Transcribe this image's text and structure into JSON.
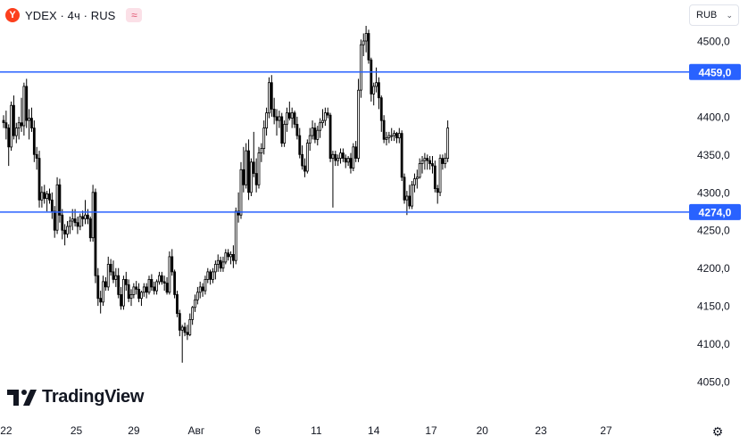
{
  "legend": {
    "logo_letter": "Y",
    "symbol": "YDEX · 4ч · RUS",
    "badge_icon": "wave-icon",
    "badge_glyph": "≈"
  },
  "currency_selector": {
    "value": "RUB",
    "icon": "chevron-down-icon"
  },
  "brand": {
    "name": "TradingView",
    "icon": "tradingview-logo-icon"
  },
  "settings": {
    "icon": "gear-icon",
    "glyph": "⚙"
  },
  "colors": {
    "candle": "#000000",
    "hline": "#2962ff",
    "price_label_bg": "#2962ff",
    "price_label_text": "#ffffff"
  },
  "chart_data": {
    "type": "candlestick",
    "timeframe": "4ч",
    "currency": "RUB",
    "ylim": [
      4030,
      4525
    ],
    "y_ticks": [
      "4500,0",
      "4400,0",
      "4350,0",
      "4300,0",
      "4250,0",
      "4200,0",
      "4150,0",
      "4100,0",
      "4050,0"
    ],
    "y_tick_values": [
      4500,
      4400,
      4350,
      4300,
      4250,
      4200,
      4150,
      4100,
      4050
    ],
    "x_ticks": [
      "22",
      "25",
      "29",
      "Авг",
      "6",
      "11",
      "14",
      "17",
      "20",
      "23",
      "27"
    ],
    "x_tick_index": [
      1,
      28.5,
      51,
      75.5,
      99.5,
      122.5,
      145,
      167.5,
      187.5,
      210.5,
      236
    ],
    "horizontal_lines": [
      {
        "value": 4459,
        "label": "4459,0"
      },
      {
        "value": 4274,
        "label": "4274,0"
      }
    ],
    "candles": [
      [
        4395,
        4402,
        4385,
        4392
      ],
      [
        4392,
        4408,
        4370,
        4385
      ],
      [
        4385,
        4390,
        4335,
        4360
      ],
      [
        4360,
        4420,
        4355,
        4415
      ],
      [
        4415,
        4428,
        4370,
        4375
      ],
      [
        4375,
        4392,
        4365,
        4385
      ],
      [
        4385,
        4400,
        4370,
        4392
      ],
      [
        4392,
        4425,
        4380,
        4388
      ],
      [
        4388,
        4445,
        4375,
        4440
      ],
      [
        4440,
        4450,
        4385,
        4395
      ],
      [
        4395,
        4410,
        4370,
        4398
      ],
      [
        4398,
        4412,
        4380,
        4385
      ],
      [
        4385,
        4395,
        4340,
        4350
      ],
      [
        4350,
        4360,
        4330,
        4345
      ],
      [
        4345,
        4355,
        4280,
        4290
      ],
      [
        4290,
        4308,
        4280,
        4300
      ],
      [
        4300,
        4310,
        4285,
        4292
      ],
      [
        4292,
        4302,
        4275,
        4298
      ],
      [
        4298,
        4305,
        4285,
        4290
      ],
      [
        4290,
        4300,
        4265,
        4275
      ],
      [
        4275,
        4282,
        4240,
        4250
      ],
      [
        4250,
        4320,
        4245,
        4310
      ],
      [
        4310,
        4318,
        4260,
        4270
      ],
      [
        4270,
        4278,
        4238,
        4250
      ],
      [
        4250,
        4258,
        4230,
        4245
      ],
      [
        4245,
        4262,
        4240,
        4255
      ],
      [
        4255,
        4268,
        4245,
        4262
      ],
      [
        4262,
        4278,
        4250,
        4265
      ],
      [
        4265,
        4278,
        4255,
        4260
      ],
      [
        4260,
        4268,
        4245,
        4255
      ],
      [
        4255,
        4272,
        4250,
        4268
      ],
      [
        4268,
        4276,
        4255,
        4265
      ],
      [
        4265,
        4290,
        4258,
        4270
      ],
      [
        4270,
        4278,
        4258,
        4265
      ],
      [
        4265,
        4268,
        4235,
        4240
      ],
      [
        4240,
        4310,
        4235,
        4300
      ],
      [
        4300,
        4305,
        4180,
        4190
      ],
      [
        4190,
        4200,
        4150,
        4160
      ],
      [
        4160,
        4170,
        4140,
        4155
      ],
      [
        4155,
        4190,
        4150,
        4182
      ],
      [
        4182,
        4188,
        4170,
        4175
      ],
      [
        4175,
        4215,
        4170,
        4205
      ],
      [
        4205,
        4212,
        4190,
        4195
      ],
      [
        4195,
        4210,
        4180,
        4185
      ],
      [
        4185,
        4200,
        4175,
        4190
      ],
      [
        4190,
        4200,
        4160,
        4165
      ],
      [
        4165,
        4175,
        4145,
        4150
      ],
      [
        4150,
        4190,
        4145,
        4185
      ],
      [
        4185,
        4195,
        4170,
        4178
      ],
      [
        4178,
        4185,
        4155,
        4160
      ],
      [
        4160,
        4172,
        4150,
        4165
      ],
      [
        4165,
        4180,
        4160,
        4175
      ],
      [
        4175,
        4183,
        4165,
        4172
      ],
      [
        4172,
        4180,
        4155,
        4160
      ],
      [
        4160,
        4170,
        4150,
        4168
      ],
      [
        4168,
        4180,
        4162,
        4175
      ],
      [
        4175,
        4180,
        4160,
        4168
      ],
      [
        4168,
        4190,
        4165,
        4185
      ],
      [
        4185,
        4192,
        4170,
        4175
      ],
      [
        4175,
        4182,
        4165,
        4170
      ],
      [
        4170,
        4185,
        4165,
        4182
      ],
      [
        4182,
        4195,
        4178,
        4190
      ],
      [
        4190,
        4195,
        4178,
        4182
      ],
      [
        4182,
        4190,
        4170,
        4180
      ],
      [
        4180,
        4188,
        4165,
        4168
      ],
      [
        4168,
        4222,
        4165,
        4215
      ],
      [
        4215,
        4225,
        4190,
        4195
      ],
      [
        4195,
        4198,
        4160,
        4165
      ],
      [
        4165,
        4170,
        4135,
        4140
      ],
      [
        4140,
        4145,
        4110,
        4118
      ],
      [
        4118,
        4125,
        4075,
        4122
      ],
      [
        4122,
        4128,
        4110,
        4115
      ],
      [
        4115,
        4125,
        4105,
        4112
      ],
      [
        4112,
        4140,
        4110,
        4132
      ],
      [
        4132,
        4150,
        4125,
        4148
      ],
      [
        4148,
        4165,
        4142,
        4158
      ],
      [
        4158,
        4175,
        4152,
        4168
      ],
      [
        4168,
        4182,
        4160,
        4175
      ],
      [
        4175,
        4180,
        4162,
        4170
      ],
      [
        4170,
        4190,
        4165,
        4185
      ],
      [
        4185,
        4200,
        4180,
        4195
      ],
      [
        4195,
        4198,
        4178,
        4185
      ],
      [
        4185,
        4200,
        4180,
        4195
      ],
      [
        4195,
        4210,
        4185,
        4205
      ],
      [
        4205,
        4218,
        4195,
        4210
      ],
      [
        4210,
        4215,
        4195,
        4200
      ],
      [
        4200,
        4215,
        4195,
        4208
      ],
      [
        4208,
        4225,
        4205,
        4220
      ],
      [
        4220,
        4225,
        4210,
        4215
      ],
      [
        4215,
        4222,
        4205,
        4218
      ],
      [
        4218,
        4230,
        4200,
        4210
      ],
      [
        4210,
        4280,
        4205,
        4275
      ],
      [
        4275,
        4300,
        4260,
        4270
      ],
      [
        4270,
        4340,
        4265,
        4330
      ],
      [
        4330,
        4360,
        4300,
        4310
      ],
      [
        4310,
        4365,
        4305,
        4355
      ],
      [
        4355,
        4370,
        4290,
        4300
      ],
      [
        4300,
        4345,
        4295,
        4340
      ],
      [
        4340,
        4380,
        4320,
        4325
      ],
      [
        4325,
        4345,
        4300,
        4310
      ],
      [
        4310,
        4360,
        4305,
        4352
      ],
      [
        4352,
        4365,
        4340,
        4358
      ],
      [
        4358,
        4395,
        4350,
        4385
      ],
      [
        4385,
        4412,
        4375,
        4405
      ],
      [
        4405,
        4452,
        4398,
        4445
      ],
      [
        4445,
        4455,
        4400,
        4410
      ],
      [
        4410,
        4425,
        4390,
        4400
      ],
      [
        4400,
        4410,
        4375,
        4395
      ],
      [
        4395,
        4408,
        4385,
        4400
      ],
      [
        4400,
        4405,
        4360,
        4365
      ],
      [
        4365,
        4395,
        4360,
        4390
      ],
      [
        4390,
        4412,
        4380,
        4405
      ],
      [
        4405,
        4420,
        4395,
        4398
      ],
      [
        4398,
        4412,
        4385,
        4405
      ],
      [
        4405,
        4408,
        4385,
        4390
      ],
      [
        4390,
        4400,
        4370,
        4375
      ],
      [
        4375,
        4385,
        4345,
        4350
      ],
      [
        4350,
        4362,
        4330,
        4335
      ],
      [
        4335,
        4345,
        4320,
        4328
      ],
      [
        4328,
        4370,
        4325,
        4365
      ],
      [
        4365,
        4385,
        4355,
        4375
      ],
      [
        4375,
        4395,
        4370,
        4385
      ],
      [
        4385,
        4392,
        4365,
        4370
      ],
      [
        4370,
        4388,
        4362,
        4382
      ],
      [
        4382,
        4398,
        4372,
        4392
      ],
      [
        4392,
        4410,
        4385,
        4395
      ],
      [
        4395,
        4412,
        4388,
        4405
      ],
      [
        4405,
        4412,
        4398,
        4402
      ],
      [
        4402,
        4405,
        4340,
        4345
      ],
      [
        4345,
        4355,
        4280,
        4350
      ],
      [
        4350,
        4355,
        4335,
        4342
      ],
      [
        4342,
        4350,
        4335,
        4345
      ],
      [
        4345,
        4358,
        4338,
        4352
      ],
      [
        4352,
        4358,
        4340,
        4345
      ],
      [
        4345,
        4350,
        4332,
        4340
      ],
      [
        4340,
        4348,
        4335,
        4345
      ],
      [
        4345,
        4352,
        4325,
        4332
      ],
      [
        4332,
        4365,
        4328,
        4360
      ],
      [
        4360,
        4368,
        4340,
        4345
      ],
      [
        4345,
        4450,
        4340,
        4435
      ],
      [
        4435,
        4502,
        4425,
        4495
      ],
      [
        4495,
        4510,
        4480,
        4500
      ],
      [
        4500,
        4520,
        4485,
        4510
      ],
      [
        4510,
        4515,
        4470,
        4475
      ],
      [
        4475,
        4478,
        4420,
        4430
      ],
      [
        4430,
        4445,
        4415,
        4440
      ],
      [
        4440,
        4465,
        4432,
        4445
      ],
      [
        4445,
        4452,
        4410,
        4425
      ],
      [
        4425,
        4428,
        4380,
        4395
      ],
      [
        4395,
        4402,
        4365,
        4370
      ],
      [
        4370,
        4380,
        4362,
        4372
      ],
      [
        4372,
        4380,
        4365,
        4375
      ],
      [
        4375,
        4385,
        4368,
        4375
      ],
      [
        4375,
        4382,
        4368,
        4378
      ],
      [
        4378,
        4380,
        4365,
        4372
      ],
      [
        4372,
        4385,
        4365,
        4378
      ],
      [
        4378,
        4382,
        4315,
        4320
      ],
      [
        4320,
        4325,
        4285,
        4290
      ],
      [
        4290,
        4302,
        4270,
        4295
      ],
      [
        4295,
        4310,
        4278,
        4282
      ],
      [
        4282,
        4315,
        4278,
        4310
      ],
      [
        4310,
        4325,
        4300,
        4318
      ],
      [
        4318,
        4330,
        4305,
        4320
      ],
      [
        4320,
        4345,
        4318,
        4338
      ],
      [
        4338,
        4348,
        4325,
        4342
      ],
      [
        4342,
        4352,
        4330,
        4345
      ],
      [
        4345,
        4350,
        4330,
        4342
      ],
      [
        4342,
        4348,
        4330,
        4338
      ],
      [
        4338,
        4348,
        4325,
        4335
      ],
      [
        4335,
        4342,
        4300,
        4305
      ],
      [
        4305,
        4310,
        4285,
        4300
      ],
      [
        4300,
        4350,
        4295,
        4345
      ],
      [
        4345,
        4350,
        4330,
        4338
      ],
      [
        4338,
        4352,
        4332,
        4345
      ],
      [
        4345,
        4395,
        4340,
        4385
      ]
    ]
  }
}
